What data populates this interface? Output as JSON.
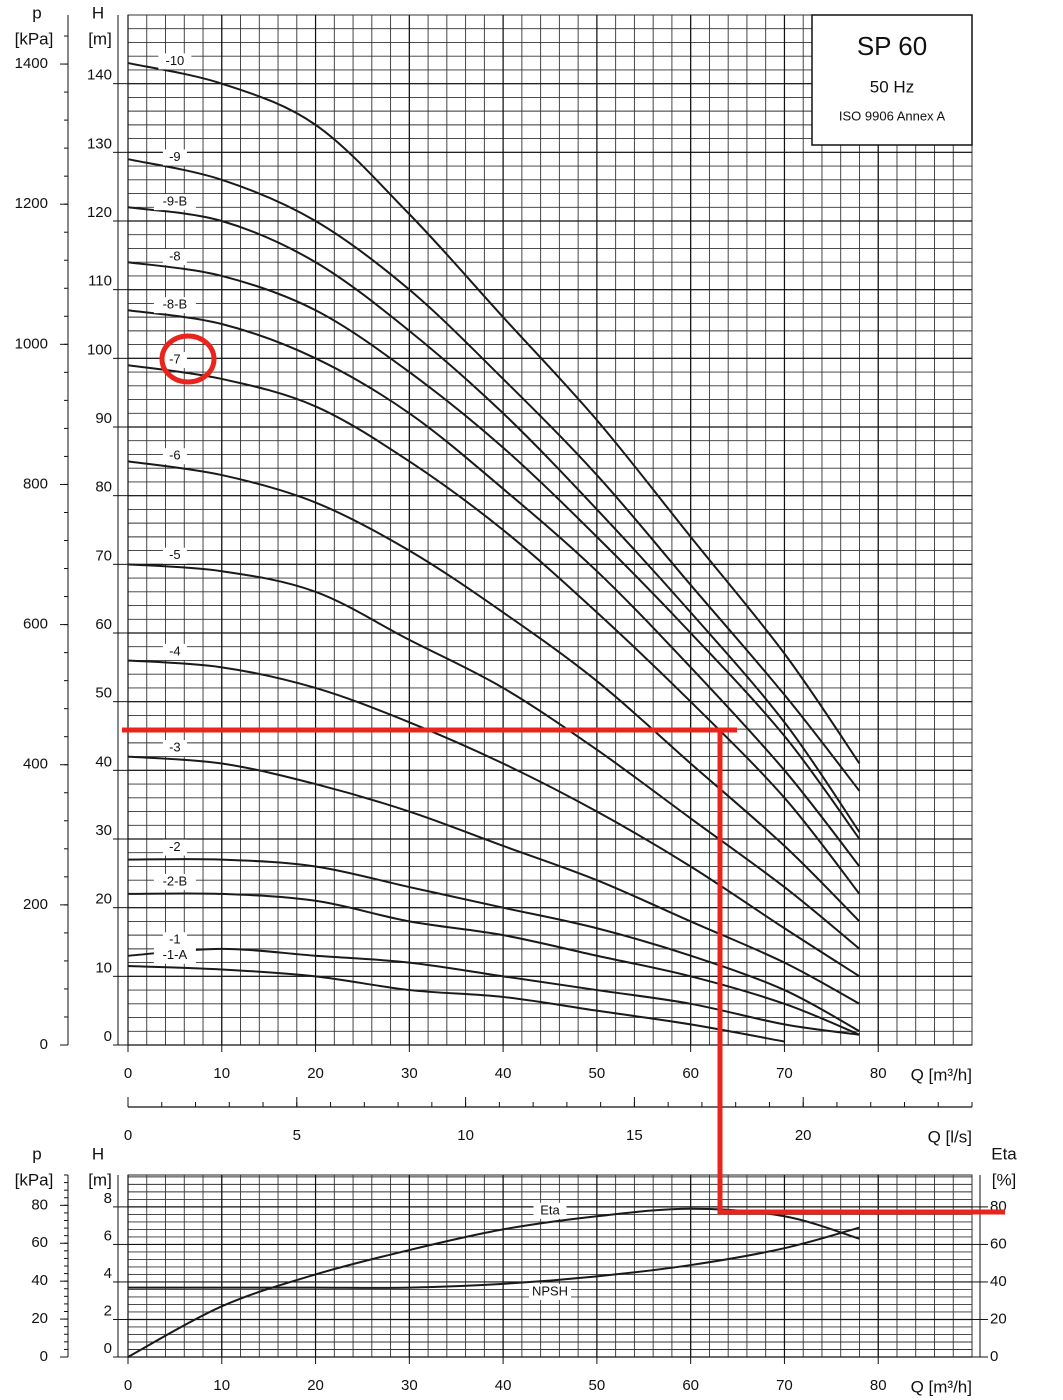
{
  "info": {
    "model": "SP 60",
    "frequency": "50 Hz",
    "standard": "ISO 9906 Annex A"
  },
  "chart_data": [
    {
      "type": "line",
      "x": [
        0,
        10,
        20,
        30,
        40,
        50,
        60,
        70,
        78
      ],
      "xlim": [
        0,
        90
      ],
      "xticks": [
        0,
        10,
        20,
        30,
        40,
        50,
        60,
        70,
        80
      ],
      "xlabel": "Q [m³/h]",
      "x2lim": [
        0,
        25
      ],
      "x2ticks": [
        0,
        5,
        10,
        15,
        20
      ],
      "x2label": "Q [l/s]",
      "ylim": [
        0,
        150
      ],
      "yticks": [
        0,
        10,
        20,
        30,
        40,
        50,
        60,
        70,
        80,
        90,
        100,
        110,
        120,
        130,
        140
      ],
      "ylabel": "H",
      "yunit": "[m]",
      "plim": [
        0,
        1470
      ],
      "pticks": [
        0,
        200,
        400,
        600,
        800,
        1000,
        1200,
        1400
      ],
      "plabel": "p",
      "punit": "[kPa]",
      "grid": true,
      "series": [
        {
          "name": "-10",
          "color": "#1a1a1a",
          "values": [
            143,
            140,
            134,
            121,
            106,
            91,
            74,
            57,
            41
          ]
        },
        {
          "name": "-9",
          "color": "#1a1a1a",
          "values": [
            129,
            126,
            120,
            110,
            97,
            83,
            67,
            51,
            37
          ]
        },
        {
          "name": "-9-B",
          "color": "#1a1a1a",
          "values": [
            122,
            120,
            114,
            104,
            92,
            78,
            63,
            47,
            31
          ]
        },
        {
          "name": "-8",
          "color": "#1a1a1a",
          "values": [
            114,
            112,
            107,
            98,
            87,
            74,
            60,
            45,
            30
          ]
        },
        {
          "name": "-8-B",
          "color": "#1a1a1a",
          "values": [
            107,
            105,
            100,
            92,
            81,
            69,
            55,
            40,
            26
          ]
        },
        {
          "name": "-7",
          "color": "#1a1a1a",
          "values": [
            99,
            97,
            93,
            85,
            75,
            63,
            50,
            36,
            22
          ]
        },
        {
          "name": "-6",
          "color": "#1a1a1a",
          "values": [
            85,
            83,
            79,
            72,
            63,
            53,
            41,
            29,
            18
          ]
        },
        {
          "name": "-5",
          "color": "#1a1a1a",
          "values": [
            70,
            69,
            66,
            59,
            52,
            43,
            33,
            23,
            14
          ]
        },
        {
          "name": "-4",
          "color": "#1a1a1a",
          "values": [
            56,
            55,
            52,
            47,
            41,
            34,
            26,
            17,
            10
          ]
        },
        {
          "name": "-3",
          "color": "#1a1a1a",
          "values": [
            42,
            41,
            38,
            34,
            29,
            24,
            18,
            12,
            6
          ]
        },
        {
          "name": "-2",
          "color": "#1a1a1a",
          "values": [
            27,
            27,
            26,
            23,
            20,
            17,
            13,
            8,
            2
          ]
        },
        {
          "name": "-2-B",
          "color": "#1a1a1a",
          "values": [
            22,
            22,
            21,
            18,
            16,
            13,
            10,
            6,
            1.5
          ]
        },
        {
          "name": "-1",
          "color": "#1a1a1a",
          "values": [
            13,
            14,
            13,
            12,
            10,
            8,
            6,
            3,
            1.5
          ]
        },
        {
          "name": "-1-A",
          "color": "#1a1a1a",
          "values": [
            11.5,
            11,
            10,
            8,
            7,
            5,
            3,
            0.5,
            null
          ]
        }
      ]
    },
    {
      "type": "line",
      "x": [
        0,
        10,
        20,
        30,
        40,
        50,
        60,
        70,
        78
      ],
      "xlim": [
        0,
        90
      ],
      "xticks": [
        0,
        10,
        20,
        30,
        40,
        50,
        60,
        70,
        80
      ],
      "xlabel": "Q [m³/h]",
      "ylim": [
        0,
        9.7
      ],
      "yticks": [
        0,
        2,
        4,
        6,
        8
      ],
      "ylabel": "H",
      "yunit": "[m]",
      "plim": [
        0,
        96
      ],
      "pticks": [
        0,
        20,
        40,
        60,
        80
      ],
      "plabel": "p",
      "punit": "[kPa]",
      "y2lim": [
        0,
        97
      ],
      "y2ticks": [
        0,
        20,
        40,
        60,
        80
      ],
      "y2label": "Eta",
      "y2unit": "[%]",
      "grid": true,
      "series": [
        {
          "name": "Eta",
          "color": "#1a1a1a",
          "axis": "y2",
          "values": [
            0,
            27,
            44,
            57,
            68,
            75,
            79,
            75,
            63
          ]
        },
        {
          "name": "NPSH",
          "color": "#1a1a1a",
          "values": [
            3.7,
            3.7,
            3.7,
            3.7,
            3.9,
            4.3,
            4.9,
            5.8,
            6.9
          ]
        }
      ]
    }
  ]
}
